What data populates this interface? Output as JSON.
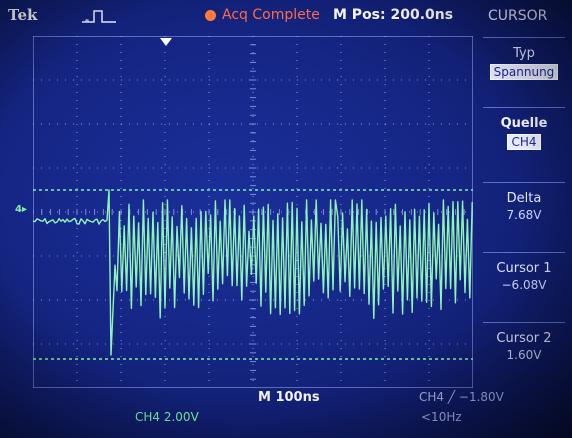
{
  "header": {
    "brand": "Tek",
    "acquisition_status": "Acq Complete",
    "horizontal_position": "M Pos: 200.0ns",
    "menu_title": "CURSOR"
  },
  "side_menu": [
    {
      "label": "Typ",
      "value": "Spannung",
      "selected": true
    },
    {
      "label": "Quelle",
      "value": "CH4",
      "selected": true
    },
    {
      "label": "Delta",
      "value": "7.68V",
      "selected": false
    },
    {
      "label": "Cursor 1",
      "value": "−6.08V",
      "selected": false
    },
    {
      "label": "Cursor 2",
      "value": "1.60V",
      "selected": false
    }
  ],
  "footer": {
    "timebase": "M 100ns",
    "trigger": "CH4 ╱ −1.80V",
    "channel_scale": "CH4  2.00V",
    "trigger_frequency": "<10Hz"
  },
  "channel_marker": "4",
  "graticule": {
    "divisions_x": 10,
    "divisions_y": 8
  },
  "colors": {
    "trace": "#8ff5b3",
    "cursor_lines": "#7ff2a6",
    "grid_dots": "#a9b4ff",
    "screen": "#1b2f9a",
    "status_accent": "#ff6a4a"
  },
  "cursors": {
    "cursor1_volts": -6.08,
    "cursor2_volts": 1.6,
    "volts_per_div": 2.0,
    "delta_volts": 7.68
  }
}
